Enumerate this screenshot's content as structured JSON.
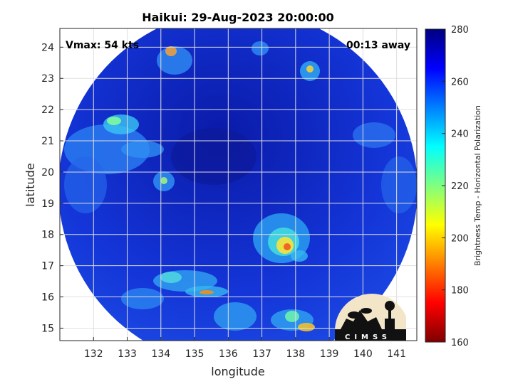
{
  "title": "Haikui: 29-Aug-2023 20:00:00",
  "vmax_label": "Vmax: 54 kts",
  "time_offset_label": "00:13 away",
  "xlabel": "longitude",
  "ylabel": "latitude",
  "colorbar": {
    "label": "Brightness Temp - Horizontal Polarization",
    "min": 160,
    "max": 280,
    "ticks": [
      "280",
      "260",
      "240",
      "220",
      "200",
      "180",
      "160"
    ]
  },
  "logo": {
    "text": "CIMSS"
  },
  "map": {
    "x_ticks": [
      "132",
      "133",
      "134",
      "135",
      "136",
      "137",
      "138",
      "139",
      "140",
      "141"
    ],
    "y_ticks": [
      "24",
      "23",
      "22",
      "21",
      "20",
      "19",
      "18",
      "17",
      "16",
      "15"
    ],
    "lon_range": [
      131,
      141.6
    ],
    "lat_range": [
      14.6,
      24.6
    ],
    "swath_center": {
      "lon": 136.6,
      "lat": 19.5
    }
  }
}
